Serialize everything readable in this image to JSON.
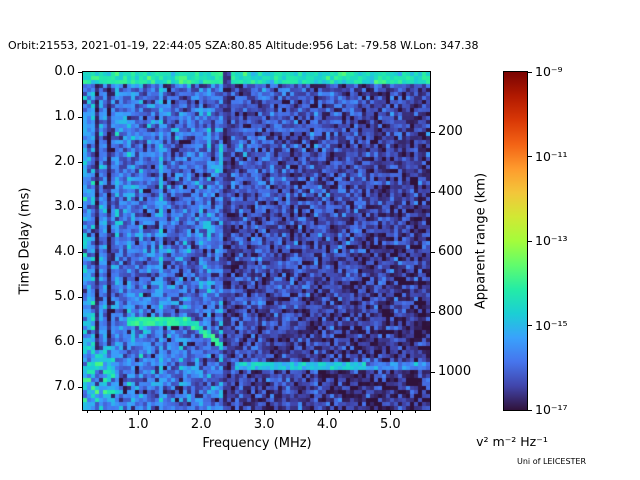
{
  "credit": "Uni of LEICESTER",
  "chart_data": {
    "type": "heatmap",
    "title": "Orbit:21553, 2021-01-19, 22:44:05 SZA:80.85 Altitude:956 Lat: -79.58 W.Lon: 347.38",
    "xlabel": "Frequency (MHz)",
    "ylabel": "Time Delay (ms)",
    "ylabel_right": "Apparent range (km)",
    "colorbar_label": "v² m⁻² Hz⁻¹",
    "x_range_mhz": [
      0.125,
      5.63
    ],
    "y_range_ms": [
      0.0,
      7.5
    ],
    "km_per_ms": 150,
    "x_ticks": [
      {
        "value": 1.0,
        "label": "1.0"
      },
      {
        "value": 2.0,
        "label": "2.0"
      },
      {
        "value": 3.0,
        "label": "3.0"
      },
      {
        "value": 4.0,
        "label": "4.0"
      },
      {
        "value": 5.0,
        "label": "5.0"
      }
    ],
    "x_minor_step": 0.2,
    "y_ticks": [
      {
        "value": 0.0,
        "label": "0.0"
      },
      {
        "value": 1.0,
        "label": "1.0"
      },
      {
        "value": 2.0,
        "label": "2.0"
      },
      {
        "value": 3.0,
        "label": "3.0"
      },
      {
        "value": 4.0,
        "label": "4.0"
      },
      {
        "value": 5.0,
        "label": "5.0"
      },
      {
        "value": 6.0,
        "label": "6.0"
      },
      {
        "value": 7.0,
        "label": "7.0"
      }
    ],
    "right_ticks": [
      {
        "value_km": 200,
        "label": "200"
      },
      {
        "value_km": 400,
        "label": "400"
      },
      {
        "value_km": 600,
        "label": "600"
      },
      {
        "value_km": 800,
        "label": "800"
      },
      {
        "value_km": 1000,
        "label": "1000"
      }
    ],
    "colorbar": {
      "scale": "log",
      "min_exp": -17,
      "max_exp": -9,
      "ticks": [
        {
          "exp": -9,
          "label": "10⁻⁹"
        },
        {
          "exp": -11,
          "label": "10⁻¹¹"
        },
        {
          "exp": -13,
          "label": "10⁻¹³"
        },
        {
          "exp": -15,
          "label": "10⁻¹⁵"
        },
        {
          "exp": -17,
          "label": "10⁻¹⁷"
        }
      ]
    },
    "colormap": {
      "name": "turbo",
      "stops": [
        "#30123b",
        "#4145ab",
        "#4675ed",
        "#39a2fc",
        "#1bcfd4",
        "#24eca6",
        "#61fc6c",
        "#a4fc3b",
        "#d1e834",
        "#f3c63a",
        "#fe9b2d",
        "#f36315",
        "#d93806",
        "#b11901",
        "#7a0402"
      ]
    },
    "grid": {
      "nx": 87,
      "ny": 84,
      "seed": 21553
    },
    "background": {
      "split_mhz": 2.36,
      "left_base": -15.85,
      "left_sigma": 0.5,
      "column_striping": 0.55,
      "right_base": -16.1,
      "right_delay_slope": 0.35,
      "right_freq_slope": 0.3,
      "right_sigma": 0.45
    },
    "features": [
      {
        "name": "low-frequency-edge-band",
        "type": "vband",
        "f0": 0.125,
        "f1": 0.3,
        "level": -15.5,
        "sigma": 0.6
      },
      {
        "name": "dark-line-0.33MHz",
        "type": "vband",
        "f0": 0.3,
        "f1": 0.37,
        "level": -16.8,
        "sigma": 0.2
      },
      {
        "name": "dark-line-0.52MHz",
        "type": "vband",
        "f0": 0.49,
        "f1": 0.56,
        "level": -16.8,
        "sigma": 0.2
      },
      {
        "name": "bright-line-1.35MHz",
        "type": "vband",
        "f0": 1.32,
        "f1": 1.4,
        "level": -15.2,
        "sigma": 0.3
      },
      {
        "name": "bottom-left-scatter",
        "type": "region",
        "f0": 0.125,
        "f1": 0.62,
        "t0": 6.1,
        "t1": 7.5,
        "level": -15.2,
        "sigma": 0.7
      },
      {
        "name": "direct-pulse-band",
        "type": "hband",
        "t0": 0.0,
        "t1": 0.27,
        "level": -14.4,
        "sigma": 0.35
      },
      {
        "name": "dark-band-2.4MHz",
        "type": "vband",
        "f0": 2.36,
        "f1": 2.46,
        "level": -16.6,
        "sigma": 0.25
      },
      {
        "name": "ionospheric-echo-trace",
        "type": "trace",
        "f0": 0.8,
        "f1": 2.33,
        "t_base": 5.5,
        "knee": 1.5,
        "span": 0.82,
        "rise": 0.58,
        "halfwidth": 0.09,
        "level": -14.2,
        "sigma": 0.25
      },
      {
        "name": "surface-echo-line",
        "type": "hband",
        "f0": 2.5,
        "f1": 4.6,
        "t0": 6.42,
        "t1": 6.58,
        "level": -14.9,
        "sigma": 0.3
      },
      {
        "name": "surface-echo-faint",
        "type": "hband",
        "f0": 4.6,
        "f1": 5.63,
        "t0": 6.42,
        "t1": 6.58,
        "level": -15.6,
        "sigma": 0.4
      }
    ]
  }
}
